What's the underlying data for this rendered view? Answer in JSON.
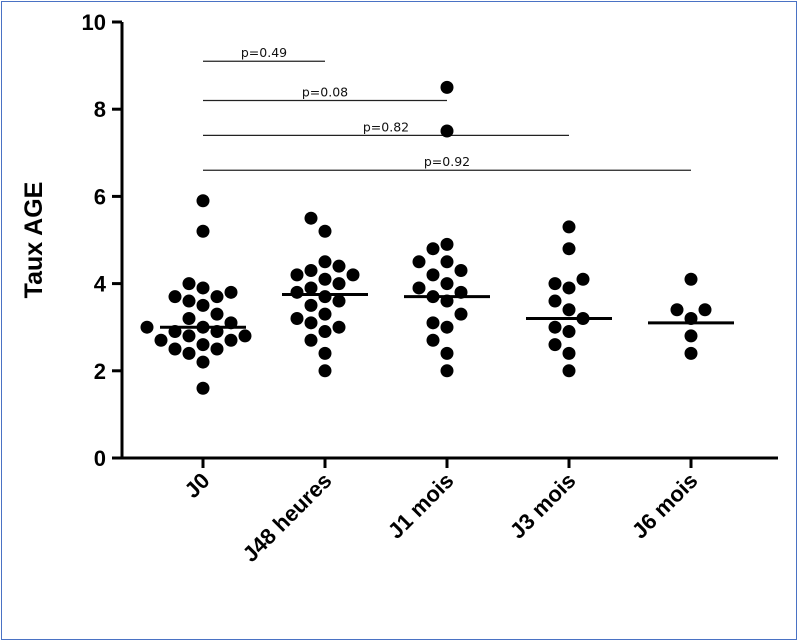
{
  "chart_data": {
    "type": "scatter",
    "ylabel": "Taux AGE",
    "xlabel": "",
    "title": "",
    "ylim": [
      0,
      10
    ],
    "yticks": [
      "0",
      "2",
      "4",
      "6",
      "8",
      "10"
    ],
    "categories": [
      "J0",
      "J48 heures",
      "J1 mois",
      "J3 mois",
      "J6 mois"
    ],
    "points": [
      [
        1.6,
        2.2,
        2.4,
        2.5,
        2.5,
        2.6,
        2.7,
        2.7,
        2.8,
        2.8,
        2.9,
        2.9,
        3.0,
        3.0,
        3.1,
        3.2,
        3.3,
        3.5,
        3.6,
        3.7,
        3.7,
        3.8,
        3.9,
        4.0,
        5.2,
        5.9
      ],
      [
        2.0,
        2.4,
        2.7,
        2.9,
        3.0,
        3.1,
        3.2,
        3.3,
        3.5,
        3.6,
        3.7,
        3.8,
        3.9,
        4.0,
        4.1,
        4.2,
        4.2,
        4.3,
        4.4,
        4.5,
        5.2,
        5.5
      ],
      [
        2.0,
        2.4,
        2.7,
        3.0,
        3.1,
        3.3,
        3.6,
        3.7,
        3.8,
        3.9,
        4.0,
        4.2,
        4.3,
        4.5,
        4.5,
        4.8,
        4.9,
        7.5,
        8.5
      ],
      [
        2.0,
        2.4,
        2.6,
        2.9,
        3.0,
        3.2,
        3.4,
        3.6,
        3.9,
        4.0,
        4.1,
        4.8,
        5.3
      ],
      [
        2.4,
        2.8,
        3.2,
        3.4,
        3.4,
        4.1
      ]
    ],
    "means": [
      3.0,
      3.75,
      3.7,
      3.2,
      3.1
    ],
    "annotations": [
      {
        "text": "p=0.49",
        "from": "J0",
        "to": "J48 heures",
        "y": 9.1
      },
      {
        "text": "p=0.08",
        "from": "J0",
        "to": "J1 mois",
        "y": 8.2
      },
      {
        "text": "p=0.82",
        "from": "J0",
        "to": "J3 mois",
        "y": 7.4
      },
      {
        "text": "p=0.92",
        "from": "J0",
        "to": "J6 mois",
        "y": 6.6
      }
    ],
    "grid": false,
    "colors": {
      "points": "#000000",
      "frame": "#4a72c4"
    }
  }
}
